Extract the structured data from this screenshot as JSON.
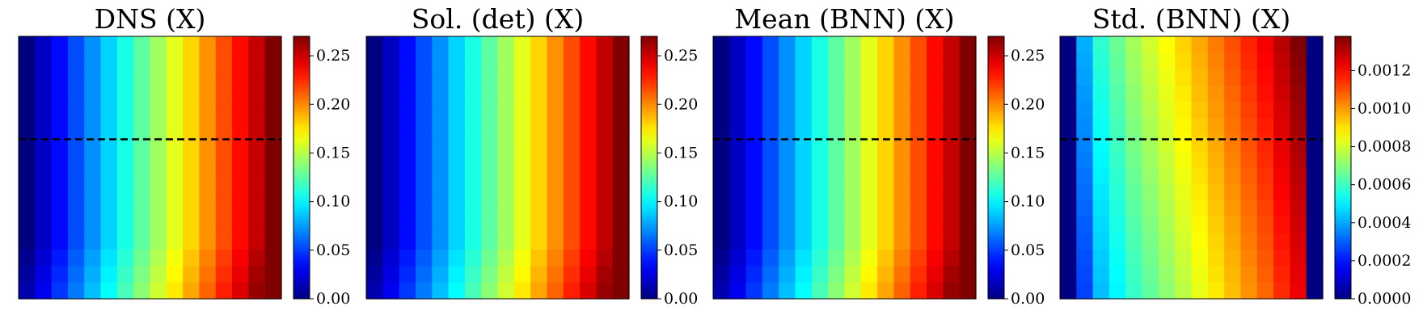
{
  "chart_data": [
    {
      "type": "heatmap",
      "title": "DNS (X)",
      "colormap": "jet",
      "colorbar": {
        "range": [
          0.0,
          0.27
        ],
        "ticks": [
          "0.00",
          "0.05",
          "0.10",
          "0.15",
          "0.20",
          "0.25"
        ],
        "tick_values": [
          0.0,
          0.05,
          0.1,
          0.15,
          0.2,
          0.25
        ]
      },
      "grid_size": [
        16,
        16
      ],
      "x_range": [
        0,
        1
      ],
      "y_range": [
        0,
        1
      ],
      "field_x_profile": [
        0.0,
        0.018,
        0.036,
        0.054,
        0.072,
        0.09,
        0.108,
        0.126,
        0.144,
        0.162,
        0.18,
        0.198,
        0.216,
        0.234,
        0.252,
        0.27
      ],
      "hline_y": 0.5
    },
    {
      "type": "heatmap",
      "title": "Sol. (det) (X)",
      "colormap": "jet",
      "colorbar": {
        "range": [
          0.0,
          0.27
        ],
        "ticks": [
          "0.00",
          "0.05",
          "0.10",
          "0.15",
          "0.20",
          "0.25"
        ],
        "tick_values": [
          0.0,
          0.05,
          0.1,
          0.15,
          0.2,
          0.25
        ]
      },
      "grid_size": [
        16,
        16
      ],
      "x_range": [
        0,
        1
      ],
      "y_range": [
        0,
        1
      ],
      "field_x_profile": [
        0.0,
        0.018,
        0.036,
        0.054,
        0.072,
        0.09,
        0.108,
        0.126,
        0.144,
        0.162,
        0.18,
        0.198,
        0.216,
        0.234,
        0.252,
        0.27
      ],
      "hline_y": null
    },
    {
      "type": "heatmap",
      "title": "Mean (BNN) (X)",
      "colormap": "jet",
      "colorbar": {
        "range": [
          0.0,
          0.27
        ],
        "ticks": [
          "0.00",
          "0.05",
          "0.10",
          "0.15",
          "0.20",
          "0.25"
        ],
        "tick_values": [
          0.0,
          0.05,
          0.1,
          0.15,
          0.2,
          0.25
        ]
      },
      "grid_size": [
        16,
        16
      ],
      "x_range": [
        0,
        1
      ],
      "y_range": [
        0,
        1
      ],
      "field_x_profile": [
        0.0,
        0.018,
        0.036,
        0.054,
        0.072,
        0.09,
        0.108,
        0.126,
        0.144,
        0.162,
        0.18,
        0.198,
        0.216,
        0.234,
        0.252,
        0.27
      ],
      "hline_y": 0.5
    },
    {
      "type": "heatmap",
      "title": "Std. (BNN) (X)",
      "colormap": "jet",
      "colorbar": {
        "range": [
          0.0,
          0.00138
        ],
        "ticks": [
          "0.0000",
          "0.0002",
          "0.0004",
          "0.0006",
          "0.0008",
          "0.0010",
          "0.0012"
        ],
        "tick_values": [
          0.0,
          0.0002,
          0.0004,
          0.0006,
          0.0008,
          0.001,
          0.0012
        ]
      },
      "grid_size": [
        16,
        16
      ],
      "x_range": [
        0,
        1
      ],
      "y_range": [
        0,
        1
      ],
      "field_x_profile": [
        0.0,
        0.00035,
        0.00052,
        0.0006,
        0.00068,
        0.00074,
        0.0008,
        0.00086,
        0.00092,
        0.00098,
        0.00104,
        0.0011,
        0.00116,
        0.00124,
        0.00132,
        0.0
      ],
      "field_y_modifier": [
        6e-05,
        5e-05,
        4e-05,
        3e-05,
        2e-05,
        1e-05,
        0.0,
        -1e-05,
        -2e-05,
        -3e-05,
        -4e-05,
        -5e-05,
        -6e-05,
        -7e-05,
        -8e-05,
        -9e-05
      ],
      "hline_y": 0.5
    }
  ]
}
